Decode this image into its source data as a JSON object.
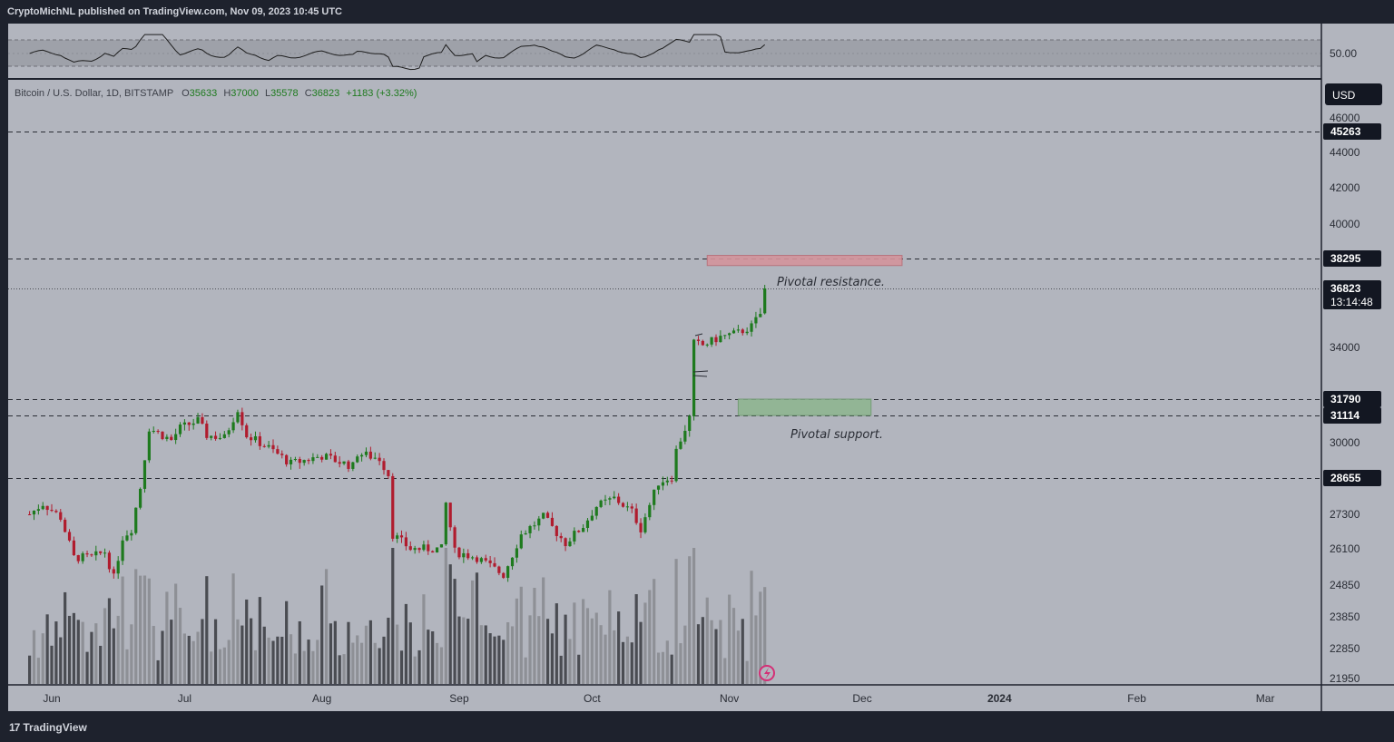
{
  "header": {
    "publisher": "CryptoMichNL published on TradingView.com, Nov 09, 2023 10:45 UTC"
  },
  "footer": {
    "brand": "TradingView"
  },
  "symbol_info": {
    "title": "Bitcoin / U.S. Dollar, 1D, BITSTAMP",
    "open_label": "O",
    "open": "35633",
    "high_label": "H",
    "high": "37000",
    "low_label": "L",
    "low": "35578",
    "close_label": "C",
    "close": "36823",
    "change": "+1183 (+3.32%)"
  },
  "currency_button": "USD",
  "countdown": "13:14:48",
  "colors": {
    "background": "#b2b5be",
    "frame": "#1e222d",
    "up": "#1e7a1e",
    "down": "#b01c2e",
    "resistance_zone": "#d4949c",
    "support_zone": "#8fb591",
    "volume_dark": "#4a4c52",
    "volume_light": "#8e9096"
  },
  "annotations": {
    "resistance": "Pivotal resistance.",
    "support": "Pivotal support."
  },
  "rsi_panel": {
    "level_label": "50.00"
  },
  "chart_data": {
    "type": "candlestick",
    "title": "Bitcoin / U.S. Dollar, 1D, BITSTAMP",
    "x_ticks": [
      "Jun",
      "Jul",
      "Aug",
      "Sep",
      "Oct",
      "Nov",
      "Dec",
      "2024",
      "Feb",
      "Mar"
    ],
    "y_ticks": [
      "21950",
      "22850",
      "23850",
      "24850",
      "26100",
      "27300",
      "30000",
      "34000",
      "40000",
      "42000",
      "44000",
      "46000"
    ],
    "price_range": [
      21500,
      46500
    ],
    "horizontal_levels": [
      {
        "value": 45263,
        "label": "45263"
      },
      {
        "value": 38295,
        "label": "38295"
      },
      {
        "value": 31790,
        "label": "31790"
      },
      {
        "value": 31114,
        "label": "31114"
      },
      {
        "value": 28655,
        "label": "28655"
      }
    ],
    "last_price": {
      "value": 36823,
      "label": "36823"
    },
    "zones": [
      {
        "name": "Pivotal resistance",
        "low": 37950,
        "high": 38450,
        "from": "2023-10-27",
        "to": "2023-12-10"
      },
      {
        "name": "Pivotal support",
        "low": 31114,
        "high": 31790,
        "from": "2023-11-03",
        "to": "2023-12-03"
      }
    ],
    "price_path": [
      [
        "2023-05-27",
        27300
      ],
      [
        "2023-05-30",
        27700
      ],
      [
        "2023-06-03",
        27200
      ],
      [
        "2023-06-06",
        25800
      ],
      [
        "2023-06-10",
        25800
      ],
      [
        "2023-06-13",
        26000
      ],
      [
        "2023-06-15",
        25100
      ],
      [
        "2023-06-17",
        26500
      ],
      [
        "2023-06-19",
        26800
      ],
      [
        "2023-06-21",
        28300
      ],
      [
        "2023-06-23",
        30600
      ],
      [
        "2023-06-26",
        30300
      ],
      [
        "2023-06-28",
        30100
      ],
      [
        "2023-06-30",
        30600
      ],
      [
        "2023-07-04",
        30900
      ],
      [
        "2023-07-06",
        30300
      ],
      [
        "2023-07-10",
        30200
      ],
      [
        "2023-07-13",
        31400
      ],
      [
        "2023-07-15",
        30300
      ],
      [
        "2023-07-20",
        29800
      ],
      [
        "2023-07-25",
        29200
      ],
      [
        "2023-08-01",
        29500
      ],
      [
        "2023-08-08",
        29100
      ],
      [
        "2023-08-09",
        29600
      ],
      [
        "2023-08-14",
        29400
      ],
      [
        "2023-08-16",
        28800
      ],
      [
        "2023-08-17",
        26600
      ],
      [
        "2023-08-21",
        26100
      ],
      [
        "2023-08-28",
        26100
      ],
      [
        "2023-08-29",
        27700
      ],
      [
        "2023-08-31",
        26000
      ],
      [
        "2023-09-05",
        25800
      ],
      [
        "2023-09-11",
        25200
      ],
      [
        "2023-09-15",
        26600
      ],
      [
        "2023-09-20",
        27200
      ],
      [
        "2023-09-25",
        26300
      ],
      [
        "2023-09-29",
        26900
      ],
      [
        "2023-10-02",
        27600
      ],
      [
        "2023-10-06",
        27900
      ],
      [
        "2023-10-10",
        27400
      ],
      [
        "2023-10-12",
        26800
      ],
      [
        "2023-10-16",
        28500
      ],
      [
        "2023-10-19",
        28700
      ],
      [
        "2023-10-20",
        29700
      ],
      [
        "2023-10-23",
        31000
      ],
      [
        "2023-10-24",
        34200
      ],
      [
        "2023-10-26",
        34100
      ],
      [
        "2023-10-30",
        34500
      ],
      [
        "2023-11-03",
        34700
      ],
      [
        "2023-11-06",
        35000
      ],
      [
        "2023-11-08",
        35600
      ],
      [
        "2023-11-09",
        36823
      ]
    ]
  }
}
